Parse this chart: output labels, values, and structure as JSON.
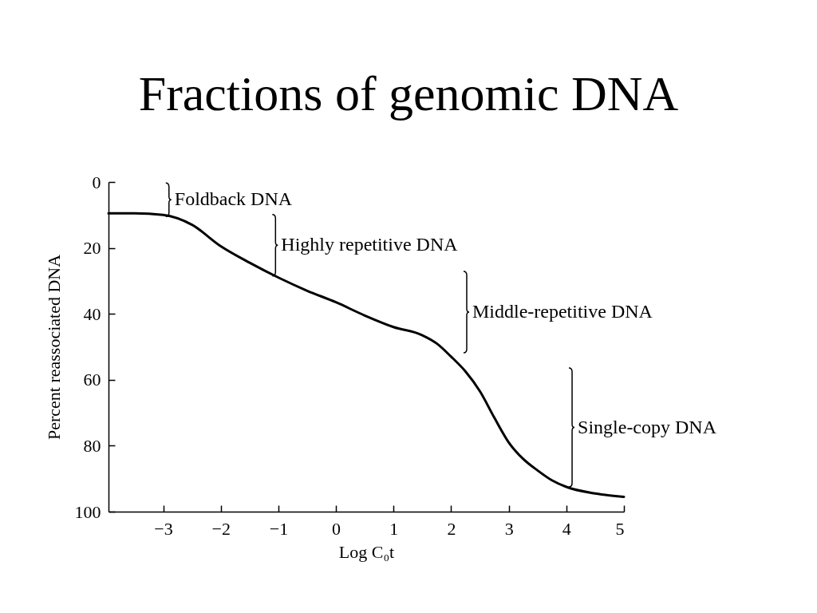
{
  "chart_data": {
    "type": "line",
    "title": "Fractions of genomic DNA",
    "xlabel": "Log C₀t",
    "ylabel": "Percent reassociated DNA",
    "x": [
      -3.95,
      -3.5,
      -3,
      -2.5,
      -2,
      -1.5,
      -1,
      -0.5,
      0,
      0.5,
      1,
      1.5,
      1.75,
      2,
      2.25,
      2.5,
      2.75,
      3,
      3.25,
      3.5,
      3.75,
      4,
      4.5,
      5
    ],
    "series": [
      {
        "color": "#000000",
        "values": [
          9.5,
          9.5,
          10,
          13,
          19.5,
          24.5,
          29,
          33,
          36.5,
          40.5,
          44,
          46.5,
          49,
          53,
          57.5,
          63.5,
          71.5,
          79,
          84,
          87.5,
          90.5,
          92.5,
          94.5,
          95.5
        ]
      }
    ],
    "xlim": [
      -3.95,
      5
    ],
    "ylim": [
      100,
      0
    ],
    "xticks": [
      -3,
      -2,
      -1,
      0,
      1,
      2,
      3,
      4,
      5
    ],
    "yticks": [
      0,
      20,
      40,
      60,
      80,
      100
    ],
    "grid": false,
    "annotations": [
      {
        "text": "Foldback DNA",
        "x": -2.9,
        "y": 10.5
      },
      {
        "text": "Highly repetitive DNA",
        "x": -1.05,
        "y": 28.5
      },
      "Middle-repetitive DNA",
      {
        "text": "Single-copy DNA",
        "x": 4.1,
        "y": 92.5
      }
    ]
  }
}
